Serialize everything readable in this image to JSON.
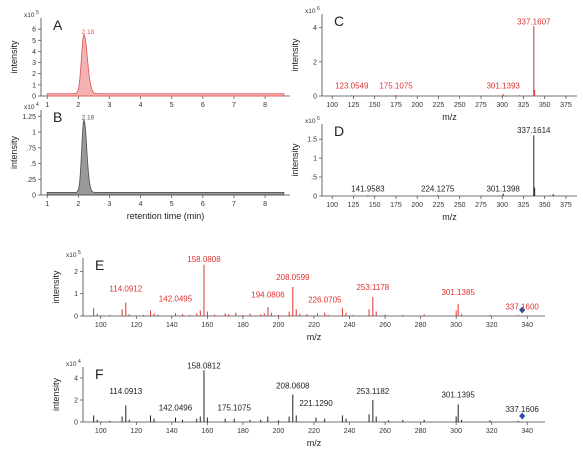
{
  "chart_data": [
    {
      "panel_label": "A",
      "type": "area",
      "ylabel": "intensity",
      "y_exponent_label": "x10",
      "y_exponent_power": "5",
      "xlim": [
        0.8,
        8.8
      ],
      "ylim": [
        0,
        7
      ],
      "x_ticks": [
        1,
        2,
        3,
        4,
        5,
        6,
        7,
        8
      ],
      "y_ticks": [
        0,
        1,
        2,
        3,
        4,
        5,
        6
      ],
      "color": "#e06060",
      "fill": "#f4b3b3",
      "peaks": [
        {
          "center": 2.18,
          "height": 5.3,
          "sigma_left": 0.08,
          "sigma_right": 0.11
        }
      ],
      "peak_label": "2.18"
    },
    {
      "panel_label": "B",
      "type": "area",
      "ylabel": "intensity",
      "y_exponent_label": "x10",
      "y_exponent_power": "4",
      "xlabel": "retention time (min)",
      "xlim": [
        0.8,
        8.8
      ],
      "ylim": [
        0,
        1.35
      ],
      "x_ticks": [
        1,
        2,
        3,
        4,
        5,
        6,
        7,
        8
      ],
      "y_ticks": [
        0,
        0.25,
        0.5,
        0.75,
        1,
        1.25
      ],
      "y_tick_labels": [
        "0",
        ".25",
        ".5",
        ".75",
        "1",
        "1.25"
      ],
      "color": "#555555",
      "fill": "#999999",
      "peaks": [
        {
          "center": 2.18,
          "height": 1.15,
          "sigma_left": 0.07,
          "sigma_right": 0.09
        }
      ],
      "peak_label": "2.18"
    },
    {
      "panel_label": "C",
      "type": "bar",
      "ylabel": "intensity",
      "y_exponent_label": "x10",
      "y_exponent_power": "6",
      "xlabel": "m/z",
      "xlim": [
        88,
        388
      ],
      "ylim": [
        0,
        4.8
      ],
      "x_ticks": [
        100,
        125,
        150,
        175,
        200,
        225,
        250,
        275,
        300,
        325,
        350,
        375
      ],
      "y_ticks": [
        0,
        2,
        4
      ],
      "color": "#e03030",
      "peaks": [
        [
          123.0549,
          0.04
        ],
        [
          175.1075,
          0.05
        ],
        [
          301.1393,
          0.12
        ],
        [
          320.0,
          0.05
        ],
        [
          337.1607,
          4.1
        ],
        [
          338.16,
          0.35
        ]
      ],
      "labels": [
        {
          "x": 123.0549,
          "text": "123.0549",
          "y": 0.45
        },
        {
          "x": 175.1075,
          "text": "175.1075",
          "y": 0.45
        },
        {
          "x": 301.1393,
          "text": "301.1393",
          "y": 0.45
        },
        {
          "x": 337.1607,
          "text": "337.1607",
          "y": 4.2
        }
      ]
    },
    {
      "panel_label": "D",
      "type": "bar",
      "ylabel": "intensity",
      "y_exponent_label": "x10",
      "y_exponent_power": "6",
      "xlabel": "m/z",
      "xlim": [
        88,
        388
      ],
      "ylim": [
        0,
        1.9
      ],
      "x_ticks": [
        100,
        125,
        150,
        175,
        200,
        225,
        250,
        275,
        300,
        325,
        350,
        375
      ],
      "y_ticks": [
        0,
        0.5,
        1,
        1.5
      ],
      "y_tick_labels": [
        "0",
        ".5",
        "1",
        "1.5"
      ],
      "color": "#222222",
      "peaks": [
        [
          141.9583,
          0.02
        ],
        [
          224.1275,
          0.02
        ],
        [
          301.1398,
          0.06
        ],
        [
          337.1614,
          1.6
        ],
        [
          338.16,
          0.22
        ],
        [
          360,
          0.05
        ]
      ],
      "labels": [
        {
          "x": 141.9583,
          "text": "141.9583",
          "y": 0.12
        },
        {
          "x": 224.1275,
          "text": "224.1275",
          "y": 0.12
        },
        {
          "x": 301.1398,
          "text": "301.1398",
          "y": 0.12
        },
        {
          "x": 337.1614,
          "text": "337.1614",
          "y": 1.66
        }
      ]
    },
    {
      "panel_label": "E",
      "type": "bar",
      "ylabel": "intensity",
      "y_exponent_label": "x10",
      "y_exponent_power": "5",
      "xlabel": "m/z",
      "xlim": [
        90,
        350
      ],
      "ylim": [
        0,
        2.6
      ],
      "x_ticks": [
        100,
        120,
        140,
        160,
        180,
        200,
        220,
        240,
        260,
        280,
        300,
        320,
        340
      ],
      "y_ticks": [
        0,
        1,
        2
      ],
      "color": "#e03030",
      "precursor": {
        "x": 337.16,
        "color": "#2b4fa0"
      },
      "peaks": [
        [
          96,
          0.35
        ],
        [
          98,
          0.1
        ],
        [
          105,
          0.05
        ],
        [
          112,
          0.3
        ],
        [
          114.0912,
          0.6
        ],
        [
          116,
          0.08
        ],
        [
          124,
          0.05
        ],
        [
          128,
          0.25
        ],
        [
          130,
          0.12
        ],
        [
          132,
          0.06
        ],
        [
          142.0495,
          0.12
        ],
        [
          146,
          0.08
        ],
        [
          150,
          0.05
        ],
        [
          154,
          0.12
        ],
        [
          156,
          0.25
        ],
        [
          158.0808,
          2.3
        ],
        [
          160,
          0.2
        ],
        [
          164,
          0.06
        ],
        [
          170,
          0.12
        ],
        [
          172,
          0.08
        ],
        [
          176,
          0.15
        ],
        [
          180,
          0.05
        ],
        [
          184,
          0.1
        ],
        [
          190,
          0.08
        ],
        [
          192,
          0.12
        ],
        [
          194.0806,
          0.4
        ],
        [
          196,
          0.15
        ],
        [
          200,
          0.05
        ],
        [
          206,
          0.2
        ],
        [
          208.0599,
          1.3
        ],
        [
          210,
          0.3
        ],
        [
          212,
          0.1
        ],
        [
          216,
          0.08
        ],
        [
          222,
          0.12
        ],
        [
          226.0705,
          0.15
        ],
        [
          228,
          0.05
        ],
        [
          236,
          0.35
        ],
        [
          238,
          0.15
        ],
        [
          242,
          0.05
        ],
        [
          251,
          0.3
        ],
        [
          253.1178,
          0.85
        ],
        [
          255,
          0.2
        ],
        [
          260,
          0.06
        ],
        [
          270,
          0.05
        ],
        [
          282,
          0.08
        ],
        [
          300,
          0.25
        ],
        [
          301.1385,
          0.55
        ],
        [
          303,
          0.08
        ],
        [
          319,
          0.05
        ],
        [
          335,
          0.05
        ]
      ],
      "labels": [
        {
          "x": 114.0912,
          "text": "114.0912",
          "y": 1.1
        },
        {
          "x": 142.0495,
          "text": "142.0495",
          "y": 0.65
        },
        {
          "x": 158.0808,
          "text": "158.0808",
          "y": 2.42
        },
        {
          "x": 194.0806,
          "text": "194.0806",
          "y": 0.82
        },
        {
          "x": 208.0599,
          "text": "208.0599",
          "y": 1.62
        },
        {
          "x": 226.0705,
          "text": "226.0705",
          "y": 0.6
        },
        {
          "x": 253.1178,
          "text": "253.1178",
          "y": 1.17
        },
        {
          "x": 301.1385,
          "text": "301.1385",
          "y": 0.95
        },
        {
          "x": 337.16,
          "text": "337.1600",
          "y": 0.3
        }
      ]
    },
    {
      "panel_label": "F",
      "type": "bar",
      "ylabel": "intensity",
      "y_exponent_label": "x10",
      "y_exponent_power": "4",
      "xlabel": "m/z",
      "xlim": [
        90,
        350
      ],
      "ylim": [
        0,
        5.0
      ],
      "x_ticks": [
        100,
        120,
        140,
        160,
        180,
        200,
        220,
        240,
        260,
        280,
        300,
        320,
        340
      ],
      "y_ticks": [
        0,
        2,
        4
      ],
      "color": "#222222",
      "precursor": {
        "x": 337.16,
        "color": "#2b4fa0"
      },
      "peaks": [
        [
          96,
          0.6
        ],
        [
          98,
          0.2
        ],
        [
          105,
          0.1
        ],
        [
          112,
          0.5
        ],
        [
          114.0913,
          1.5
        ],
        [
          116,
          0.2
        ],
        [
          128,
          0.6
        ],
        [
          130,
          0.3
        ],
        [
          142.0496,
          0.4
        ],
        [
          146,
          0.2
        ],
        [
          154,
          0.3
        ],
        [
          156,
          0.5
        ],
        [
          158.0812,
          4.7
        ],
        [
          160,
          0.4
        ],
        [
          170,
          0.3
        ],
        [
          175.1075,
          0.3
        ],
        [
          184,
          0.2
        ],
        [
          190,
          0.2
        ],
        [
          194,
          0.5
        ],
        [
          200,
          0.15
        ],
        [
          206,
          0.5
        ],
        [
          208.0608,
          2.5
        ],
        [
          210,
          0.6
        ],
        [
          221.129,
          0.4
        ],
        [
          226,
          0.3
        ],
        [
          236,
          0.6
        ],
        [
          238,
          0.3
        ],
        [
          251,
          0.7
        ],
        [
          253.1182,
          2.0
        ],
        [
          255,
          0.5
        ],
        [
          262,
          0.15
        ],
        [
          270,
          0.2
        ],
        [
          282,
          0.2
        ],
        [
          300,
          0.5
        ],
        [
          301.1395,
          1.6
        ],
        [
          303,
          0.2
        ],
        [
          319,
          0.15
        ],
        [
          335,
          0.1
        ]
      ],
      "labels": [
        {
          "x": 114.0913,
          "text": "114.0913",
          "y": 2.55
        },
        {
          "x": 142.0496,
          "text": "142.0496",
          "y": 1.05
        },
        {
          "x": 158.0812,
          "text": "158.0812",
          "y": 4.85
        },
        {
          "x": 175.1075,
          "text": "175.1075",
          "y": 1.05
        },
        {
          "x": 208.0608,
          "text": "208.0608",
          "y": 3.05
        },
        {
          "x": 221.129,
          "text": "221.1290",
          "y": 1.45
        },
        {
          "x": 253.1182,
          "text": "253.1182",
          "y": 2.55
        },
        {
          "x": 301.1395,
          "text": "301.1395",
          "y": 2.25
        },
        {
          "x": 337.16,
          "text": "337.1606",
          "y": 0.9
        }
      ]
    }
  ]
}
